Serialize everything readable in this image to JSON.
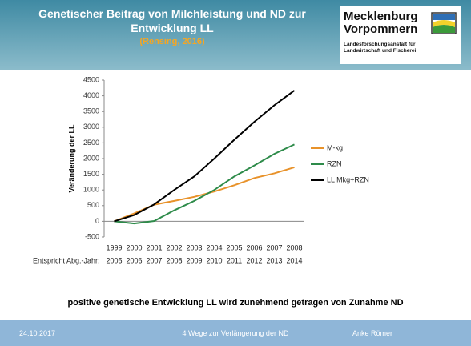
{
  "header": {
    "title": "Genetischer Beitrag von Milchleistung und ND zur Entwicklung LL",
    "source": "(Rensing, 2016)"
  },
  "logo": {
    "name": [
      "Mecklenburg",
      "Vorpommern"
    ],
    "sub": [
      "Landesforschungsanstalt für",
      "Landwirtschaft und Fischerei"
    ]
  },
  "chart_data": {
    "type": "line",
    "y_label": "Veränderung der LL",
    "categories": [
      "1999",
      "2000",
      "2001",
      "2002",
      "2003",
      "2004",
      "2005",
      "2006",
      "2007",
      "2008"
    ],
    "secondary_label": "Entspricht Abg.-Jahr:",
    "secondary_categories": [
      "2005",
      "2006",
      "2007",
      "2008",
      "2009",
      "2010",
      "2011",
      "2012",
      "2013",
      "2014"
    ],
    "series": [
      {
        "name": "M-kg",
        "color": "#e8922a",
        "values": [
          0,
          250,
          530,
          650,
          780,
          950,
          1150,
          1380,
          1530,
          1720
        ]
      },
      {
        "name": "RZN",
        "color": "#2e8b4a",
        "values": [
          0,
          -70,
          10,
          350,
          650,
          1000,
          1430,
          1780,
          2150,
          2450
        ]
      },
      {
        "name": "LL Mkg+RZN",
        "color": "#000000",
        "values": [
          0,
          200,
          540,
          1000,
          1430,
          2000,
          2600,
          3170,
          3700,
          4170
        ]
      }
    ],
    "ylim": [
      -500,
      4500
    ],
    "yticks": [
      -500,
      0,
      500,
      1000,
      1500,
      2000,
      2500,
      3000,
      3500,
      4000,
      4500
    ],
    "legend": "right",
    "grid": false
  },
  "conclusion": "positive genetische Entwicklung LL wird zunehmend getragen von Zunahme ND",
  "footer": {
    "date": "24.10.2017",
    "center": "4 Wege zur Verlängerung der ND",
    "author": "Anke Römer"
  }
}
